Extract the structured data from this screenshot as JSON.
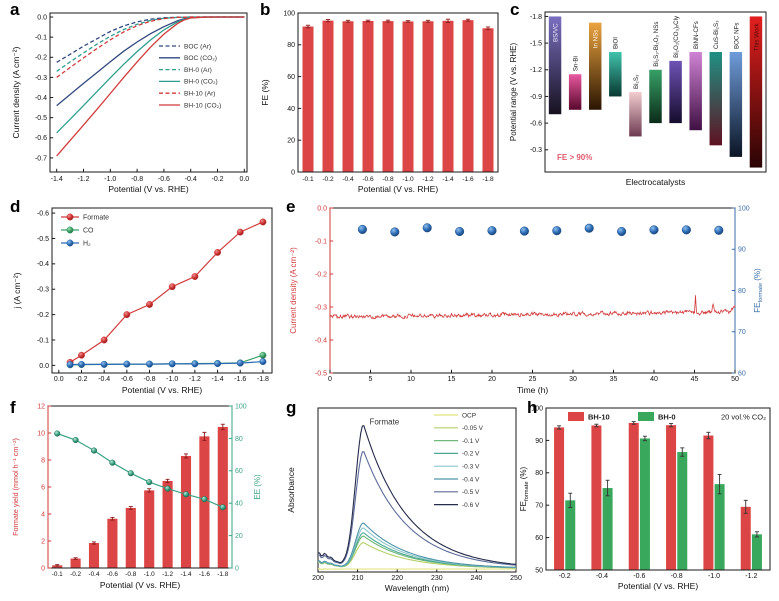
{
  "figure": {
    "background": "#ffffff"
  },
  "panels": {
    "a": {
      "letter": "a"
    },
    "b": {
      "letter": "b"
    },
    "c": {
      "letter": "c"
    },
    "d": {
      "letter": "d"
    },
    "e": {
      "letter": "e"
    },
    "f": {
      "letter": "f"
    },
    "g": {
      "letter": "g"
    },
    "h": {
      "letter": "h"
    }
  },
  "chart_data": [
    {
      "panel": "a",
      "type": "line",
      "xlabel": "Potential (V vs. RHE)",
      "ylabel": "Current density (A cm⁻²)",
      "xlim": [
        -1.45,
        0.02
      ],
      "ylim": [
        -0.77,
        0.02
      ],
      "xticks": [
        "-1.4",
        "-1.2",
        "-1.0",
        "-0.8",
        "-0.6",
        "-0.4",
        "-0.2",
        "0.0"
      ],
      "yticks": [
        "0.0",
        "-0.1",
        "-0.2",
        "-0.3",
        "-0.4",
        "-0.5",
        "-0.6",
        "-0.7"
      ],
      "x": [
        -1.4,
        -1.3,
        -1.2,
        -1.1,
        -1.0,
        -0.9,
        -0.8,
        -0.7,
        -0.6,
        -0.5,
        -0.45,
        -0.4,
        -0.3,
        -0.2,
        -0.1,
        0.0
      ],
      "series": [
        {
          "name": "BOC (Ar)",
          "color": "#31487f",
          "dash": true,
          "values": [
            -0.225,
            -0.185,
            -0.145,
            -0.108,
            -0.072,
            -0.044,
            -0.024,
            -0.011,
            -0.004,
            -0.001,
            -0.001,
            0,
            0,
            0,
            0,
            0
          ]
        },
        {
          "name": "BOC (CO₂)",
          "color": "#31487f",
          "dash": false,
          "values": [
            -0.44,
            -0.385,
            -0.33,
            -0.276,
            -0.222,
            -0.17,
            -0.124,
            -0.083,
            -0.048,
            -0.019,
            -0.009,
            -0.003,
            0,
            0,
            0,
            0
          ]
        },
        {
          "name": "BH-0 (Ar)",
          "color": "#2f9e8f",
          "dash": true,
          "values": [
            -0.27,
            -0.223,
            -0.178,
            -0.135,
            -0.096,
            -0.062,
            -0.036,
            -0.017,
            -0.006,
            -0.002,
            -0.001,
            0,
            0,
            0,
            0,
            0
          ]
        },
        {
          "name": "BH-0 (CO₂)",
          "color": "#2f9e8f",
          "dash": false,
          "values": [
            -0.575,
            -0.508,
            -0.44,
            -0.371,
            -0.302,
            -0.235,
            -0.172,
            -0.114,
            -0.064,
            -0.025,
            -0.012,
            -0.004,
            0,
            0,
            0,
            0
          ]
        },
        {
          "name": "BH-10 (Ar)",
          "color": "#d23b3b",
          "dash": true,
          "values": [
            -0.3,
            -0.251,
            -0.203,
            -0.157,
            -0.113,
            -0.074,
            -0.043,
            -0.021,
            -0.008,
            -0.002,
            -0.001,
            0,
            0,
            0,
            0,
            0
          ]
        },
        {
          "name": "BH-10 (CO₂)",
          "color": "#d23b3b",
          "dash": false,
          "values": [
            -0.69,
            -0.613,
            -0.537,
            -0.459,
            -0.38,
            -0.3,
            -0.223,
            -0.15,
            -0.085,
            -0.033,
            -0.015,
            -0.005,
            -0.001,
            0,
            0,
            0
          ]
        }
      ]
    },
    {
      "panel": "b",
      "type": "bar",
      "xlabel": "Potential (V vs. RHE)",
      "ylabel": "FE (%)",
      "ylim": [
        0,
        100
      ],
      "yticks": [
        "0",
        "20",
        "40",
        "60",
        "80",
        "100"
      ],
      "categories": [
        "-0.1",
        "-0.2",
        "-0.4",
        "-0.6",
        "-0.8",
        "-1.0",
        "-1.2",
        "-1.4",
        "-1.6",
        "-1.8"
      ],
      "values": [
        91.5,
        95.2,
        94.8,
        95.0,
        94.9,
        94.7,
        94.8,
        95.1,
        95.5,
        90.4
      ],
      "errors": [
        0.8,
        0.7,
        0.6,
        0.5,
        0.6,
        0.5,
        0.6,
        1.0,
        0.6,
        0.8
      ],
      "bar_color": "#dc4545",
      "error_color": "#8a1a1a"
    },
    {
      "panel": "c",
      "type": "range-bar",
      "xlabel": "Electrocatalysts",
      "ylabel": "Potential range (V vs. RHE)",
      "ylim": [
        -1.85,
        -0.05
      ],
      "yticks": [
        "-1.8",
        "-1.5",
        "-1.2",
        "-0.9",
        "-0.6",
        "-0.3"
      ],
      "annotation": "FE > 90%",
      "annotation_color": "#e05a6e",
      "bars": [
        {
          "label": "BS/VC",
          "from": -0.7,
          "to": -1.8,
          "top_color": "#7a6fc0",
          "bottom_color": "#16111f",
          "inside": true,
          "label_color": "#efeaff"
        },
        {
          "label": "Sn-Bi",
          "from": -0.75,
          "to": -1.15,
          "top_color": "#e858a0",
          "bottom_color": "#59082c",
          "inside": false
        },
        {
          "label": "In NSs",
          "from": -0.75,
          "to": -1.73,
          "top_color": "#eaa33f",
          "bottom_color": "#2a1502",
          "inside": true,
          "label_color": "#fff2df"
        },
        {
          "label": "BiOI",
          "from": -0.9,
          "to": -1.4,
          "top_color": "#41c3ac",
          "bottom_color": "#083831",
          "inside": false
        },
        {
          "label": "Bi₂S₃",
          "from": -0.45,
          "to": -0.95,
          "top_color": "#f2cdcf",
          "bottom_color": "#6e3b52",
          "inside": false
        },
        {
          "label": "Bi₂S₃-Bi₂O₃ NSs",
          "from": -0.6,
          "to": -1.2,
          "top_color": "#37a066",
          "bottom_color": "#0b2b19",
          "inside": false
        },
        {
          "label": "Bi₂O₂(CO₃)ₓCly",
          "from": -0.6,
          "to": -1.3,
          "top_color": "#6e52b5",
          "bottom_color": "#150c2c",
          "inside": false
        },
        {
          "label": "BiNN-CFs",
          "from": -0.52,
          "to": -1.4,
          "top_color": "#cf83d4",
          "bottom_color": "#401044",
          "inside": false
        },
        {
          "label": "CuS-Bi₂S₃",
          "from": -0.35,
          "to": -1.4,
          "top_color": "#1f9184",
          "bottom_color": "#5e1222",
          "inside": false
        },
        {
          "label": "BOC NFs",
          "from": -0.22,
          "to": -1.4,
          "top_color": "#6f9cda",
          "bottom_color": "#0b1424",
          "inside": false
        },
        {
          "label": "This Work",
          "from": -0.1,
          "to": -1.8,
          "top_color": "#e31f1f",
          "bottom_color": "#2a0404",
          "inside": true,
          "label_color": "#5c0909"
        }
      ]
    },
    {
      "panel": "d",
      "type": "line",
      "xlabel": "Potential (V vs. RHE)",
      "ylabel": "j (A cm⁻²)",
      "xticks": [
        "0.0",
        "-0.2",
        "-0.4",
        "-0.6",
        "-0.8",
        "-1.0",
        "-1.2",
        "-1.4",
        "-1.6",
        "-1.8"
      ],
      "yticks": [
        "-0.6",
        "-0.5",
        "-0.4",
        "-0.3",
        "-0.2",
        "-0.1",
        "0.0"
      ],
      "x": [
        -0.1,
        -0.2,
        -0.4,
        -0.6,
        -0.8,
        -1.0,
        -1.2,
        -1.4,
        -1.6,
        -1.8
      ],
      "series": [
        {
          "name": "Formate",
          "color": "#d23b3b",
          "values": [
            -0.012,
            -0.04,
            -0.1,
            -0.2,
            -0.24,
            -0.31,
            -0.35,
            -0.445,
            -0.525,
            -0.565
          ]
        },
        {
          "name": "CO",
          "color": "#3aa06a",
          "values": [
            -0.002,
            -0.003,
            -0.004,
            -0.005,
            -0.005,
            -0.006,
            -0.007,
            -0.008,
            -0.01,
            -0.04
          ]
        },
        {
          "name": "H₂",
          "color": "#2d6bb4",
          "values": [
            -0.003,
            -0.004,
            -0.004,
            -0.005,
            -0.005,
            -0.006,
            -0.006,
            -0.007,
            -0.009,
            -0.015
          ]
        }
      ]
    },
    {
      "panel": "e",
      "type": "stability",
      "xlabel": "Time (h)",
      "ylabel_left": "Current density (A cm⁻²)",
      "ylabel_right": "FE_{formate} (%)",
      "xlim": [
        0,
        50
      ],
      "xticks": [
        "0",
        "5",
        "10",
        "15",
        "20",
        "25",
        "30",
        "35",
        "40",
        "45",
        "50"
      ],
      "yticks_left": [
        "0.0",
        "-0.1",
        "-0.2",
        "-0.3",
        "-0.4",
        "-0.5"
      ],
      "yticks_right": [
        "100",
        "90",
        "80",
        "70",
        "60"
      ],
      "current_base": -0.33,
      "noise_amp": 0.011,
      "fe_times": [
        4,
        8,
        12,
        16,
        20,
        24,
        28,
        32,
        36,
        40,
        44,
        48
      ],
      "fe_values": [
        94.8,
        94.2,
        95.2,
        94.3,
        94.5,
        94.4,
        94.5,
        95.1,
        94.3,
        94.7,
        94.7,
        94.6
      ],
      "line_color": "#d23b3b",
      "dot_color": "#2d6bb4",
      "right_axis_color": "#3a6ea8"
    },
    {
      "panel": "f",
      "type": "bar-line",
      "xlabel": "Potential (V vs. RHE)",
      "ylabel_left": "Formate yield (mmol h⁻¹ cm⁻²)",
      "ylabel_right": "EE (%)",
      "ylim_left": [
        0,
        12
      ],
      "yticks_left": [
        "0",
        "2",
        "4",
        "6",
        "8",
        "10",
        "12"
      ],
      "ylim_right": [
        0,
        100
      ],
      "yticks_right": [
        "0",
        "20",
        "40",
        "60",
        "80",
        "100"
      ],
      "categories": [
        "-0.1",
        "-0.2",
        "-0.4",
        "-0.6",
        "-0.8",
        "-1.0",
        "-1.2",
        "-1.4",
        "-1.6",
        "-1.8"
      ],
      "bar_values": [
        0.2,
        0.7,
        1.85,
        3.65,
        4.45,
        5.75,
        6.45,
        8.3,
        9.75,
        10.45
      ],
      "bar_errors": [
        0.05,
        0.06,
        0.08,
        0.1,
        0.1,
        0.12,
        0.12,
        0.15,
        0.3,
        0.2
      ],
      "line_values": [
        83,
        79,
        72.5,
        65,
        58.5,
        53,
        49,
        45.5,
        42.5,
        37.5
      ],
      "bar_color": "#dc4545",
      "error_color": "#8a1a1a",
      "line_color": "#3aa385",
      "left_axis_color": "#d23b3b",
      "right_axis_color": "#3aa385"
    },
    {
      "panel": "g",
      "type": "spectra",
      "xlabel": "Wavelength (nm)",
      "ylabel": "Absorbance",
      "xlim": [
        200,
        250
      ],
      "xticks": [
        "200",
        "210",
        "220",
        "230",
        "240",
        "250"
      ],
      "peak_nm": 211.5,
      "annotation": "Formate",
      "series": [
        {
          "name": "OCP",
          "color": "#e2e27c",
          "peak": 0.02
        },
        {
          "name": "-0.05 V",
          "color": "#b5d06a",
          "peak": 0.16
        },
        {
          "name": "-0.1 V",
          "color": "#6fb87a",
          "peak": 0.2
        },
        {
          "name": "-0.2 V",
          "color": "#4da793",
          "peak": 0.22
        },
        {
          "name": "-0.3 V",
          "color": "#8ec7cc",
          "peak": 0.25
        },
        {
          "name": "-0.4 V",
          "color": "#4f93a8",
          "peak": 0.28
        },
        {
          "name": "-0.5 V",
          "color": "#5c6b99",
          "peak": 0.72
        },
        {
          "name": "-0.6 V",
          "color": "#252b4a",
          "peak": 0.88
        }
      ]
    },
    {
      "panel": "h",
      "type": "grouped-bar",
      "xlabel": "Potential (V vs. RHE)",
      "ylabel": "FE_{formate} (%)",
      "ylim": [
        50,
        100
      ],
      "yticks": [
        "50",
        "60",
        "70",
        "80",
        "90",
        "100"
      ],
      "categories": [
        "-0.2",
        "-0.4",
        "-0.6",
        "-0.8",
        "-1.0",
        "-1.2"
      ],
      "annotation": "20 vol.% CO₂",
      "error_color": "#333333",
      "series": [
        {
          "name": "BH-10",
          "color": "#dc4545",
          "values": [
            94.0,
            94.6,
            95.4,
            94.7,
            91.5,
            69.5
          ],
          "errors": [
            0.5,
            0.4,
            0.4,
            0.5,
            1.0,
            2.0
          ]
        },
        {
          "name": "BH-0",
          "color": "#3aa85c",
          "values": [
            71.5,
            75.3,
            90.6,
            86.4,
            76.5,
            61.0
          ],
          "errors": [
            2.2,
            2.4,
            0.7,
            1.3,
            3.0,
            0.8
          ]
        }
      ]
    }
  ]
}
